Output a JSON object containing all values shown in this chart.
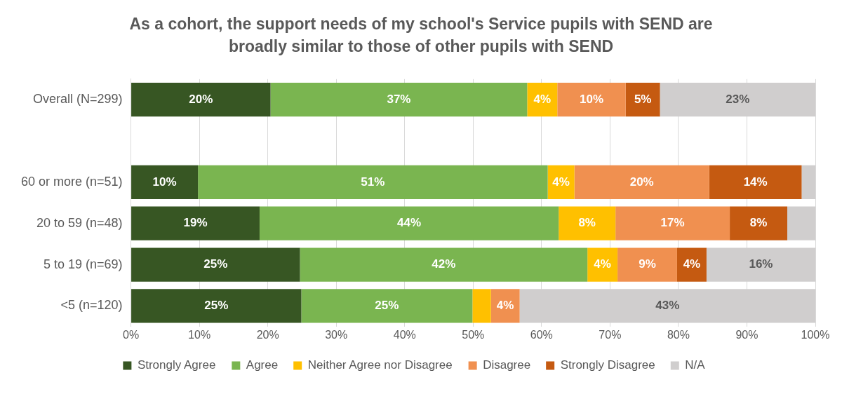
{
  "chart_data": {
    "type": "bar",
    "orientation": "horizontal",
    "stacked": true,
    "title": "As a cohort, the support needs of my school's Service pupils with SEND are broadly similar to those of other pupils with SEND",
    "categories": [
      "Overall (N=299)",
      null,
      "60 or more (n=51)",
      "20 to 59 (n=48)",
      "5 to 19 (n=69)",
      "<5 (n=120)"
    ],
    "series": [
      {
        "name": "Strongly Agree",
        "color": "#375623",
        "values": [
          20.4,
          null,
          9.8,
          18.8,
          24.7,
          24.9
        ],
        "value_labels": [
          "20%",
          null,
          "10%",
          "19%",
          "25%",
          "25%"
        ]
      },
      {
        "name": "Agree",
        "color": "#7ab550",
        "values": [
          37.5,
          null,
          51.1,
          43.7,
          42.0,
          25.0
        ],
        "value_labels": [
          "37%",
          null,
          "51%",
          "44%",
          "42%",
          "25%"
        ]
      },
      {
        "name": "Neither Agree nor Disagree",
        "color": "#ffc000",
        "values": [
          4.4,
          null,
          3.9,
          8.3,
          4.4,
          2.7
        ],
        "value_labels": [
          "4%",
          null,
          "4%",
          "8%",
          "4%",
          null
        ]
      },
      {
        "name": "Disagree",
        "color": "#f09050",
        "values": [
          10.0,
          null,
          19.7,
          16.7,
          8.7,
          4.2
        ],
        "value_labels": [
          "10%",
          null,
          "20%",
          "17%",
          "9%",
          "4%"
        ]
      },
      {
        "name": "Strongly Disagree",
        "color": "#c55a11",
        "values": [
          5.0,
          null,
          13.5,
          8.4,
          4.3,
          0
        ],
        "value_labels": [
          "5%",
          null,
          "14%",
          "8%",
          "4%",
          null
        ]
      },
      {
        "name": "N/A",
        "color": "#d0cece",
        "values": [
          22.7,
          null,
          2.0,
          4.1,
          15.9,
          43.2
        ],
        "value_labels": [
          "23%",
          null,
          null,
          null,
          "16%",
          "43%"
        ]
      }
    ],
    "xlim": [
      0,
      100
    ],
    "xticks": [
      {
        "value": 0,
        "label": "0%"
      },
      {
        "value": 10,
        "label": "10%"
      },
      {
        "value": 20,
        "label": "20%"
      },
      {
        "value": 30,
        "label": "30%"
      },
      {
        "value": 40,
        "label": "40%"
      },
      {
        "value": 50,
        "label": "50%"
      },
      {
        "value": 60,
        "label": "60%"
      },
      {
        "value": 70,
        "label": "70%"
      },
      {
        "value": 80,
        "label": "80%"
      },
      {
        "value": 90,
        "label": "90%"
      },
      {
        "value": 100,
        "label": "100%"
      }
    ],
    "grid": "x",
    "legend": "bottom"
  }
}
